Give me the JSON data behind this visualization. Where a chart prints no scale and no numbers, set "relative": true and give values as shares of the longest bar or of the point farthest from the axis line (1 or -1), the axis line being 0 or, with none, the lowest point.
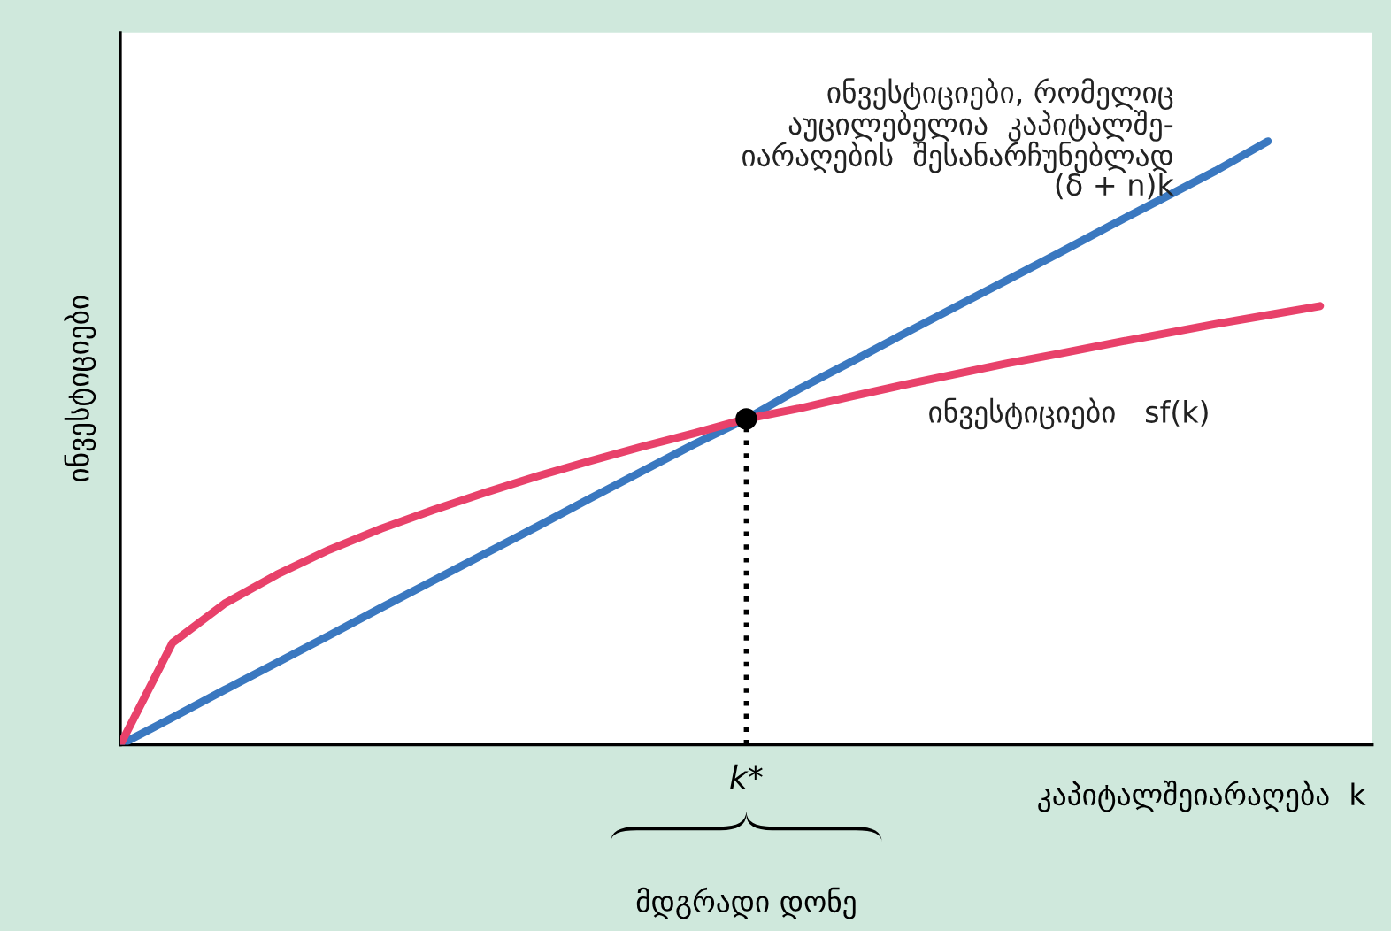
{
  "chart_data": {
    "type": "line",
    "relative": true,
    "xlabel": "კაპიტალშეიარაღება  k",
    "ylabel": "ინვესტიციები",
    "categories": [
      null,
      null,
      null,
      null,
      null,
      null,
      null,
      null,
      null,
      null,
      null,
      null,
      null,
      null,
      null,
      null,
      null,
      null,
      null,
      null,
      null,
      null,
      null,
      null,
      null
    ],
    "series": [
      {
        "name": "ინვესტიციები, რომელიც\nაუცილებელია  კაპიტალშე-\nიარაღების  შესანარჩუნებლად\n(δ + n)k",
        "color": "#3a78c0",
        "values": [
          0,
          0.045,
          0.091,
          0.136,
          0.181,
          0.227,
          0.272,
          0.317,
          0.362,
          0.408,
          0.453,
          0.498,
          0.54,
          0.589,
          0.634,
          0.68,
          0.725,
          0.77,
          0.815,
          0.861,
          0.906,
          0.951,
          1.0,
          null,
          null
        ]
      },
      {
        "name": "ინვესტიციები   sf(k)",
        "color": "#e8416a",
        "values": [
          0,
          0.169,
          0.234,
          0.282,
          0.323,
          0.358,
          0.389,
          0.418,
          0.445,
          0.47,
          0.494,
          0.516,
          0.54,
          0.557,
          0.577,
          0.596,
          0.614,
          0.632,
          0.648,
          0.665,
          0.681,
          0.697,
          0.712,
          0.727,
          null
        ]
      }
    ],
    "annotations": [
      "k*",
      "მდგრადი დონე"
    ],
    "legend": false,
    "marker": "none",
    "line_style": "solid"
  }
}
